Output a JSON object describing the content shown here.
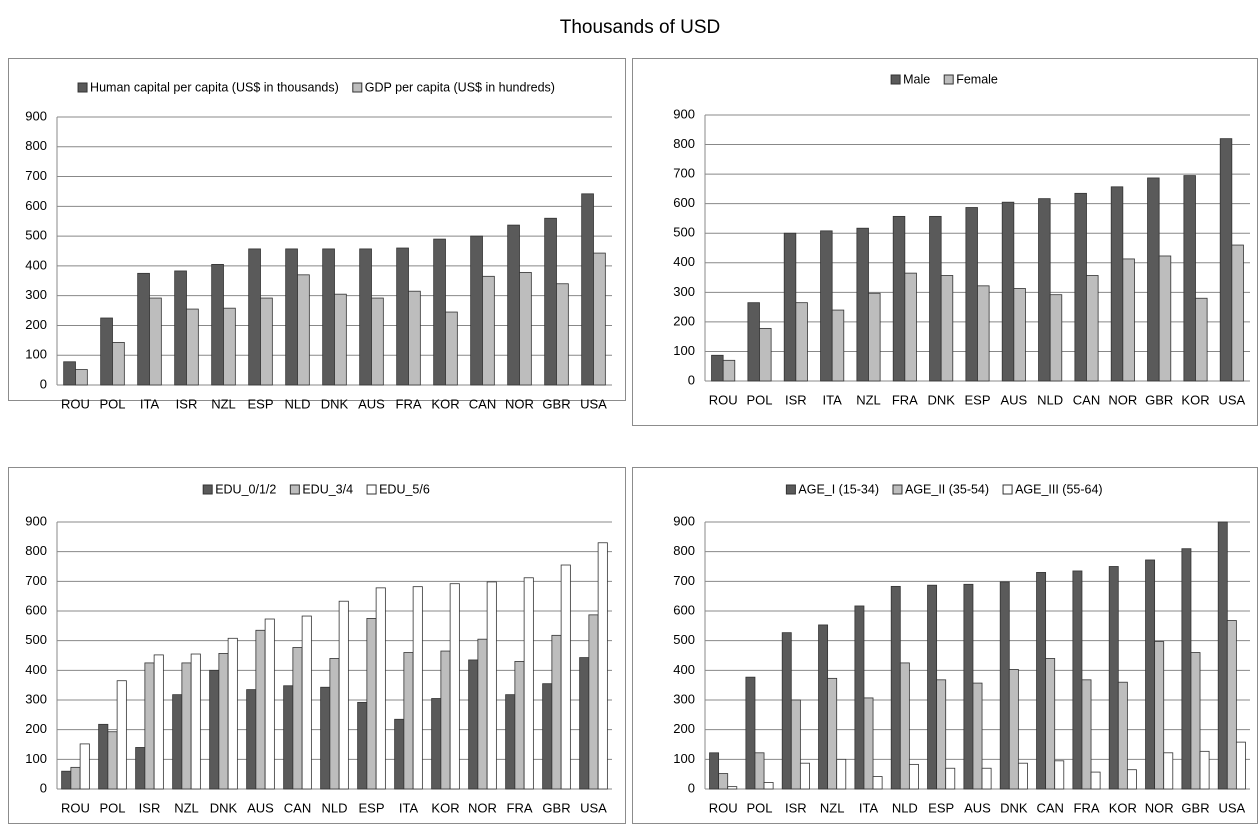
{
  "title": "Thousands of USD",
  "chart_data": [
    {
      "type": "bar",
      "legend": "top",
      "grid": true,
      "ylim": [
        0,
        900
      ],
      "yticks": [
        0,
        100,
        200,
        300,
        400,
        500,
        600,
        700,
        800,
        900
      ],
      "categories": [
        "ROU",
        "POL",
        "ITA",
        "ISR",
        "NZL",
        "ESP",
        "NLD",
        "DNK",
        "AUS",
        "FRA",
        "KOR",
        "CAN",
        "NOR",
        "GBR",
        "USA"
      ],
      "series": [
        {
          "name": "Human capital per capita (US$ in thousands)",
          "color": "#5a5a5a",
          "values": [
            78,
            225,
            375,
            383,
            405,
            457,
            457,
            457,
            457,
            460,
            490,
            500,
            537,
            560,
            642
          ]
        },
        {
          "name": "GDP per capita (US$ in hundreds)",
          "color": "#bdbdbd",
          "values": [
            52,
            143,
            292,
            255,
            258,
            292,
            370,
            305,
            292,
            315,
            245,
            365,
            378,
            340,
            443
          ]
        }
      ]
    },
    {
      "type": "bar",
      "legend": "top",
      "grid": true,
      "ylim": [
        0,
        900
      ],
      "yticks": [
        0,
        100,
        200,
        300,
        400,
        500,
        600,
        700,
        800,
        900
      ],
      "categories": [
        "ROU",
        "POL",
        "ISR",
        "ITA",
        "NZL",
        "FRA",
        "DNK",
        "ESP",
        "AUS",
        "NLD",
        "CAN",
        "NOR",
        "GBR",
        "KOR",
        "USA"
      ],
      "series": [
        {
          "name": "Male",
          "color": "#5a5a5a",
          "values": [
            87,
            265,
            500,
            508,
            517,
            557,
            557,
            587,
            605,
            617,
            635,
            657,
            687,
            695,
            820
          ]
        },
        {
          "name": "Female",
          "color": "#bdbdbd",
          "values": [
            70,
            178,
            265,
            240,
            297,
            365,
            357,
            322,
            313,
            292,
            357,
            413,
            423,
            280,
            460
          ]
        }
      ]
    },
    {
      "type": "bar",
      "legend": "top",
      "grid": true,
      "ylim": [
        0,
        900
      ],
      "yticks": [
        0,
        100,
        200,
        300,
        400,
        500,
        600,
        700,
        800,
        900
      ],
      "categories": [
        "ROU",
        "POL",
        "ISR",
        "NZL",
        "DNK",
        "AUS",
        "CAN",
        "NLD",
        "ESP",
        "ITA",
        "KOR",
        "NOR",
        "FRA",
        "GBR",
        "USA"
      ],
      "series": [
        {
          "name": "EDU_0/1/2",
          "color": "#5a5a5a",
          "values": [
            60,
            218,
            140,
            318,
            400,
            335,
            348,
            343,
            292,
            235,
            305,
            435,
            318,
            355,
            443
          ]
        },
        {
          "name": "EDU_3/4",
          "color": "#bdbdbd",
          "values": [
            73,
            193,
            425,
            425,
            457,
            535,
            477,
            440,
            575,
            460,
            465,
            505,
            430,
            518,
            587
          ]
        },
        {
          "name": "EDU_5/6",
          "color": "#ffffff",
          "values": [
            152,
            365,
            452,
            455,
            508,
            573,
            583,
            633,
            678,
            682,
            692,
            698,
            712,
            755,
            830
          ]
        }
      ]
    },
    {
      "type": "bar",
      "legend": "top",
      "grid": true,
      "ylim": [
        0,
        900
      ],
      "yticks": [
        0,
        100,
        200,
        300,
        400,
        500,
        600,
        700,
        800,
        900
      ],
      "categories": [
        "ROU",
        "POL",
        "ISR",
        "NZL",
        "ITA",
        "NLD",
        "ESP",
        "AUS",
        "DNK",
        "CAN",
        "FRA",
        "KOR",
        "NOR",
        "GBR",
        "USA"
      ],
      "series": [
        {
          "name": "AGE_I (15-34)",
          "color": "#5a5a5a",
          "values": [
            122,
            377,
            527,
            553,
            617,
            683,
            687,
            690,
            698,
            730,
            735,
            750,
            772,
            810,
            900
          ]
        },
        {
          "name": "AGE_II (35-54)",
          "color": "#bdbdbd",
          "values": [
            52,
            122,
            300,
            373,
            307,
            425,
            368,
            357,
            403,
            440,
            368,
            360,
            497,
            460,
            568
          ]
        },
        {
          "name": "AGE_III (55-64)",
          "color": "#ffffff",
          "values": [
            8,
            22,
            87,
            100,
            42,
            83,
            70,
            70,
            87,
            95,
            57,
            65,
            122,
            127,
            158
          ]
        }
      ]
    }
  ]
}
